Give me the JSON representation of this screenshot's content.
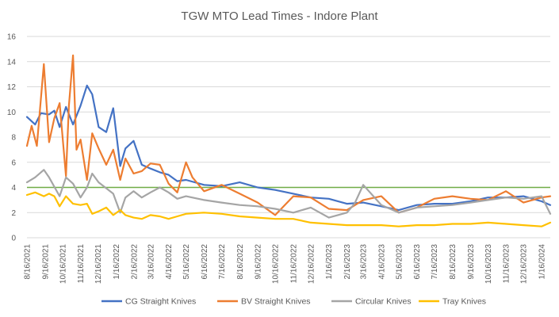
{
  "chart_data": {
    "type": "line",
    "title": "TGW MTO Lead Times - Indore Plant",
    "xlabel": "",
    "ylabel": "",
    "ylim": [
      0,
      16
    ],
    "yticks": [
      "0",
      "2",
      "4",
      "6",
      "8",
      "10",
      "12",
      "14",
      "16"
    ],
    "grid": true,
    "legend_position": "bottom",
    "reference_line": {
      "value": 4,
      "color": "#70AD47"
    },
    "x_tick_labels": [
      "8/16/2021",
      "9/16/2021",
      "10/16/2021",
      "11/16/2021",
      "12/16/2021",
      "1/16/2022",
      "2/16/2022",
      "3/16/2022",
      "4/16/2022",
      "5/16/2022",
      "6/16/2022",
      "7/16/2022",
      "8/16/2022",
      "9/16/2022",
      "10/16/2022",
      "11/16/2022",
      "12/16/2022",
      "1/16/2023",
      "2/16/2023",
      "3/16/2023",
      "4/16/2023",
      "5/16/2023",
      "6/16/2023",
      "7/16/2023",
      "8/16/2023",
      "9/16/2023",
      "10/16/2023",
      "11/16/2023",
      "12/16/2023",
      "1/16/2024"
    ],
    "series": [
      {
        "name": "CG Straight Knives",
        "color": "#4472C4",
        "x": [
          "8/16/2021",
          "8/30/2021",
          "9/9/2021",
          "9/23/2021",
          "10/2/2021",
          "10/11/2021",
          "10/22/2021",
          "11/3/2021",
          "11/16/2021",
          "11/27/2021",
          "12/6/2021",
          "12/17/2021",
          "12/30/2021",
          "1/11/2022",
          "1/23/2022",
          "2/1/2022",
          "2/15/2022",
          "3/1/2022",
          "3/16/2022",
          "4/1/2022",
          "4/16/2022",
          "5/1/2022",
          "5/16/2022",
          "6/16/2022",
          "7/16/2022",
          "8/16/2022",
          "9/16/2022",
          "10/16/2022",
          "11/16/2022",
          "12/16/2022",
          "1/16/2023",
          "2/16/2023",
          "3/16/2023",
          "4/16/2023",
          "5/16/2023",
          "6/16/2023",
          "7/16/2023",
          "8/16/2023",
          "9/16/2023",
          "10/16/2023",
          "11/16/2023",
          "12/16/2023",
          "1/16/2024",
          "1/31/2024"
        ],
        "y": [
          9.6,
          9.0,
          9.9,
          9.8,
          10.1,
          8.8,
          10.4,
          9.0,
          10.5,
          12.1,
          11.4,
          8.8,
          8.4,
          10.3,
          5.7,
          7.1,
          7.7,
          5.8,
          5.5,
          5.2,
          5.0,
          4.5,
          4.6,
          4.2,
          4.1,
          4.4,
          4.0,
          3.8,
          3.5,
          3.2,
          3.1,
          2.7,
          2.8,
          2.5,
          2.2,
          2.6,
          2.7,
          2.7,
          2.9,
          3.2,
          3.2,
          3.3,
          2.9,
          2.6
        ]
      },
      {
        "name": "BV Straight Knives",
        "color": "#ED7D31",
        "x": [
          "8/16/2021",
          "8/24/2021",
          "9/2/2021",
          "9/14/2021",
          "9/23/2021",
          "10/2/2021",
          "10/11/2021",
          "10/22/2021",
          "10/27/2021",
          "11/3/2021",
          "11/9/2021",
          "11/16/2021",
          "11/27/2021",
          "12/6/2021",
          "12/17/2021",
          "12/30/2021",
          "1/11/2022",
          "1/23/2022",
          "2/1/2022",
          "2/15/2022",
          "3/1/2022",
          "3/16/2022",
          "4/1/2022",
          "4/16/2022",
          "5/1/2022",
          "5/16/2022",
          "5/27/2022",
          "6/16/2022",
          "7/16/2022",
          "8/16/2022",
          "9/16/2022",
          "10/16/2022",
          "11/16/2022",
          "12/16/2022",
          "1/16/2023",
          "2/16/2023",
          "3/16/2023",
          "4/16/2023",
          "5/16/2023",
          "6/16/2023",
          "7/16/2023",
          "8/16/2023",
          "9/16/2023",
          "10/16/2023",
          "11/16/2023",
          "12/16/2023",
          "1/16/2024",
          "1/31/2024"
        ],
        "y": [
          7.3,
          8.9,
          7.3,
          13.8,
          7.6,
          9.5,
          10.7,
          4.9,
          10.5,
          14.5,
          7.0,
          7.8,
          4.6,
          8.3,
          7.1,
          5.8,
          7.0,
          4.6,
          6.3,
          5.1,
          5.3,
          5.9,
          5.8,
          4.3,
          3.6,
          6.0,
          4.8,
          3.7,
          4.2,
          3.5,
          2.8,
          1.8,
          3.3,
          3.2,
          2.3,
          2.2,
          3.0,
          3.3,
          2.0,
          2.4,
          3.1,
          3.3,
          3.1,
          3.0,
          3.7,
          2.8,
          3.2,
          3.3
        ]
      },
      {
        "name": "Circular Knives",
        "color": "#A5A5A5",
        "x": [
          "8/16/2021",
          "8/30/2021",
          "9/14/2021",
          "9/23/2021",
          "10/11/2021",
          "10/22/2021",
          "11/3/2021",
          "11/16/2021",
          "11/27/2021",
          "12/6/2021",
          "12/17/2021",
          "1/11/2022",
          "1/23/2022",
          "2/1/2022",
          "2/15/2022",
          "3/1/2022",
          "3/16/2022",
          "4/1/2022",
          "4/16/2022",
          "5/1/2022",
          "5/16/2022",
          "6/16/2022",
          "7/16/2022",
          "8/16/2022",
          "9/16/2022",
          "10/16/2022",
          "11/16/2022",
          "12/16/2022",
          "1/16/2023",
          "2/16/2023",
          "3/1/2023",
          "3/16/2023",
          "4/16/2023",
          "5/16/2023",
          "6/16/2023",
          "7/16/2023",
          "8/16/2023",
          "9/16/2023",
          "10/16/2023",
          "11/16/2023",
          "12/16/2023",
          "1/16/2024",
          "1/31/2024"
        ],
        "y": [
          4.4,
          4.8,
          5.4,
          4.8,
          3.3,
          4.8,
          4.3,
          3.2,
          4.0,
          5.1,
          4.4,
          3.5,
          2.0,
          3.2,
          3.7,
          3.2,
          3.6,
          4.0,
          3.6,
          3.1,
          3.3,
          3.0,
          2.8,
          2.6,
          2.5,
          2.3,
          2.0,
          2.4,
          1.6,
          2.0,
          2.7,
          4.2,
          2.6,
          2.0,
          2.4,
          2.5,
          2.6,
          2.8,
          3.0,
          3.2,
          3.1,
          3.3,
          1.9
        ]
      },
      {
        "name": "Tray Knives",
        "color": "#FFC000",
        "x": [
          "8/16/2021",
          "8/30/2021",
          "9/14/2021",
          "9/23/2021",
          "10/2/2021",
          "10/11/2021",
          "10/22/2021",
          "11/3/2021",
          "11/16/2021",
          "11/27/2021",
          "12/6/2021",
          "12/17/2021",
          "12/30/2021",
          "1/11/2022",
          "1/23/2022",
          "2/1/2022",
          "2/15/2022",
          "3/1/2022",
          "3/16/2022",
          "4/1/2022",
          "4/16/2022",
          "5/1/2022",
          "5/16/2022",
          "6/16/2022",
          "7/16/2022",
          "8/16/2022",
          "9/16/2022",
          "10/16/2022",
          "11/16/2022",
          "12/16/2022",
          "1/16/2023",
          "2/16/2023",
          "3/16/2023",
          "4/16/2023",
          "5/16/2023",
          "6/16/2023",
          "7/16/2023",
          "8/16/2023",
          "9/16/2023",
          "10/16/2023",
          "11/16/2023",
          "12/16/2023",
          "1/16/2024",
          "1/31/2024"
        ],
        "y": [
          3.4,
          3.6,
          3.3,
          3.5,
          3.3,
          2.5,
          3.3,
          2.7,
          2.6,
          2.7,
          1.9,
          2.1,
          2.4,
          1.8,
          2.2,
          1.8,
          1.6,
          1.5,
          1.8,
          1.7,
          1.5,
          1.7,
          1.9,
          2.0,
          1.9,
          1.7,
          1.6,
          1.5,
          1.5,
          1.2,
          1.1,
          1.0,
          1.0,
          1.0,
          0.9,
          1.0,
          1.0,
          1.1,
          1.1,
          1.2,
          1.1,
          1.0,
          0.9,
          1.2
        ]
      }
    ]
  }
}
